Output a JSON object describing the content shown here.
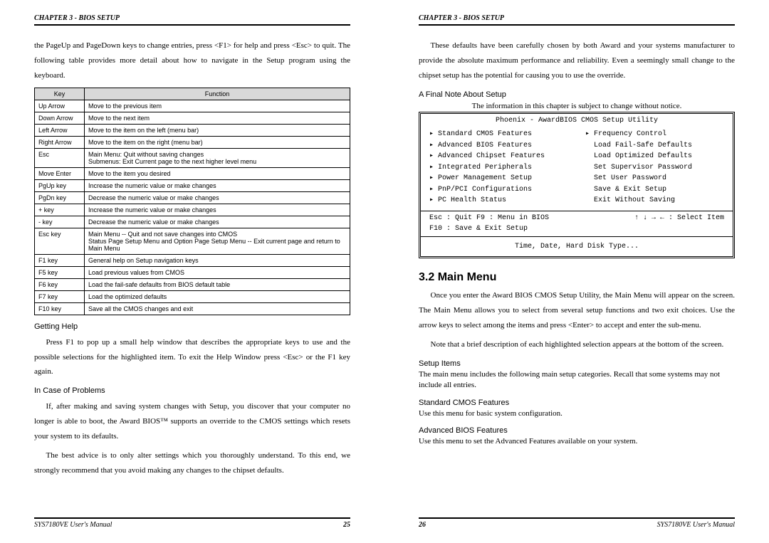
{
  "header": "CHAPTER 3 - BIOS SETUP",
  "footer_manual": "SYS7180VE User's Manual",
  "page_left_num": "25",
  "page_right_num": "26",
  "left": {
    "intro": "the PageUp and PageDown keys to change entries, press <F1> for help and press <Esc> to quit. The following table provides more detail about how to navigate in the Setup program using the keyboard.",
    "table_head_key": "Key",
    "table_head_func": "Function",
    "rows": [
      [
        "Up Arrow",
        "Move to the previous item"
      ],
      [
        "Down Arrow",
        "Move to the next item"
      ],
      [
        "Left Arrow",
        "Move to the item on the left (menu bar)"
      ],
      [
        "Right Arrow",
        "Move to the item on the right (menu bar)"
      ],
      [
        "Esc",
        "Main Menu: Quit without saving changes\nSubmenus: Exit Current page to the next higher level menu"
      ],
      [
        "Move Enter",
        "Move to the item you desired"
      ],
      [
        "PgUp key",
        "Increase the numeric value or make changes"
      ],
      [
        "PgDn key",
        "Decrease the numeric value or make changes"
      ],
      [
        "+ key",
        "Increase the numeric value or make changes"
      ],
      [
        "- key",
        "Decrease the numeric value or make changes"
      ],
      [
        "Esc key",
        "Main Menu -- Quit and not save changes into CMOS\nStatus Page Setup Menu and Option Page Setup Menu -- Exit current page and return to Main Menu"
      ],
      [
        "F1 key",
        "General help on Setup navigation keys"
      ],
      [
        "F5 key",
        "Load previous values from CMOS"
      ],
      [
        "F6 key",
        "Load the fail-safe defaults from BIOS default table"
      ],
      [
        "F7 key",
        "Load the optimized defaults"
      ],
      [
        "F10 key",
        "Save all the CMOS changes and exit"
      ]
    ],
    "getting_help_head": "Getting Help",
    "getting_help_body": "Press F1 to pop up a small help window that describes the appropriate keys to use and the possible selections for the highlighted item. To exit the Help Window press <Esc> or the F1 key again.",
    "problems_head": "In Case of Problems",
    "problems_p1": "If, after making and saving system changes with Setup, you discover that your computer no longer is able to boot, the Award BIOS™ supports an override to the CMOS settings which resets your system to its defaults.",
    "problems_p2": "The best advice is to only alter settings which you thoroughly understand. To this end, we strongly recommend that you avoid making any changes to the chipset defaults."
  },
  "right": {
    "intro": "These defaults have been carefully chosen by both Award and your systems manufacturer to provide the absolute maximum performance and reliability. Even a seemingly small change to the chipset setup has the potential for causing you to use the override.",
    "final_note_head": "A Final Note About Setup",
    "final_note_body": "The information in this chapter is subject to change without notice.",
    "bios_title": "Phoenix - AwardBIOS CMOS Setup Utility",
    "bios_left": [
      "▸ Standard CMOS Features",
      "▸ Advanced BIOS Features",
      "▸ Advanced Chipset Features",
      "▸ Integrated Peripherals",
      "▸ Power Management Setup",
      "▸ PnP/PCI Configurations",
      "▸ PC Health Status"
    ],
    "bios_right": [
      "▸ Frequency Control",
      "  Load Fail-Safe Defaults",
      "  Load Optimized Defaults",
      "  Set Supervisor Password",
      "  Set User Password",
      "  Save & Exit Setup",
      "  Exit Without Saving"
    ],
    "bios_hint_l1": "Esc : Quit    F9 : Menu in BIOS",
    "bios_hint_r1": "↑ ↓ → ←   : Select Item",
    "bios_hint_l2": "F10 : Save & Exit Setup",
    "bios_foot": "Time, Date, Hard Disk Type...",
    "section_title": "3.2   Main Menu",
    "mm_p1": "Once you enter the Award BIOS CMOS Setup Utility, the Main Menu will appear on the screen. The Main Menu allows you to select from several setup functions and two exit choices. Use the arrow keys to select among the items and press <Enter> to accept and enter the sub-menu.",
    "mm_p2": "Note that a brief description of each highlighted selection appears at the bottom of the screen.",
    "setup_head": "Setup Items",
    "setup_body": "The main menu includes the following main setup categories. Recall that some systems may not include all entries.",
    "std_head": "Standard CMOS Features",
    "std_body": "Use this menu for basic system configuration.",
    "adv_head": "Advanced BIOS Features",
    "adv_body": "Use this menu to set the Advanced Features available on your system."
  }
}
